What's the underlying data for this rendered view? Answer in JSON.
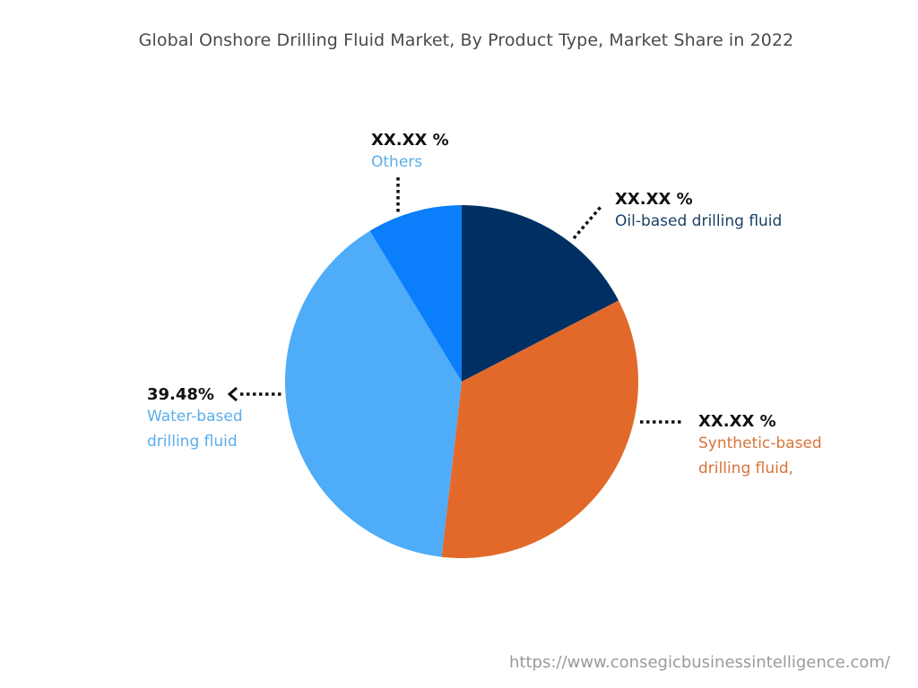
{
  "chart_data": {
    "type": "pie",
    "title": "Global Onshore Drilling Fluid Market, By Product Type, Market Share in 2022",
    "start_angle_deg": 0,
    "direction": "clockwise",
    "slices": [
      {
        "label": "Oil-based drilling fluid",
        "value_label": "XX.XX %",
        "value": 17.4,
        "color": "#003063"
      },
      {
        "label": "Synthetic-based drilling fluid,",
        "value_label": "XX.XX %",
        "value": 34.4,
        "color": "#E2692A"
      },
      {
        "label": "Water-based drilling fluid",
        "value_label": "39.48%",
        "value": 39.48,
        "color": "#4FACF8"
      },
      {
        "label": "Others",
        "value_label": "XX.XX %",
        "value": 8.7,
        "color": "#0A7EFB"
      }
    ]
  },
  "labels": {
    "oil": {
      "value": "XX.XX %",
      "line1": "Oil-based drilling fluid",
      "color": "#1b3f66"
    },
    "synthetic": {
      "value": "XX.XX %",
      "line1": "Synthetic-based",
      "line2": "drilling fluid,",
      "color": "#d9733b"
    },
    "water": {
      "value": "39.48%",
      "line1": "Water-based",
      "line2": "drilling fluid",
      "color": "#5aaee8"
    },
    "others": {
      "value": "XX.XX %",
      "line1": "Others",
      "color": "#5aaee8"
    }
  },
  "footer": {
    "url": "https://www.consegicbusinessintelligence.com/"
  }
}
